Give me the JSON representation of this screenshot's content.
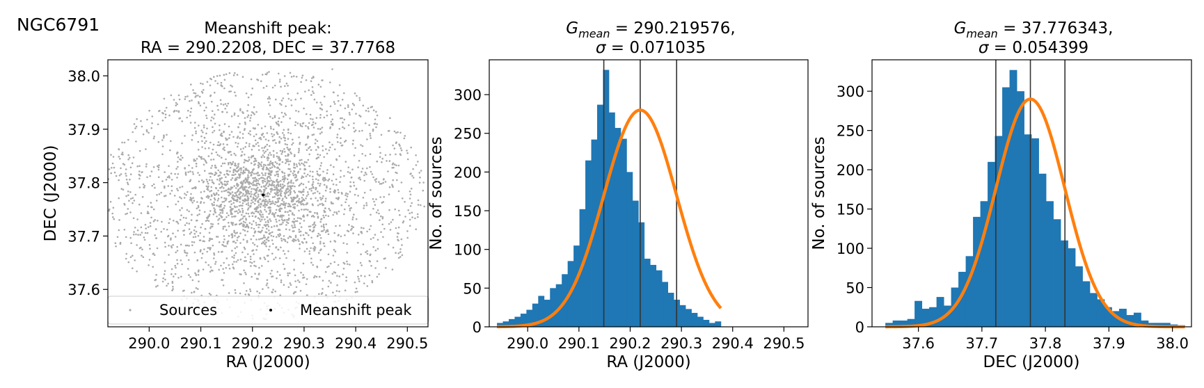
{
  "figure_label": "NGC6791",
  "chart_data": [
    {
      "type": "scatter",
      "title_line1": "Meanshift peak:",
      "title_line2": "RA = 290.2208, DEC = 37.7768",
      "xlabel": "RA (J2000)",
      "ylabel": "DEC (J2000)",
      "xlim": [
        289.92,
        290.54
      ],
      "ylim": [
        37.53,
        38.03
      ],
      "xticks": [
        290.0,
        290.1,
        290.2,
        290.3,
        290.4,
        290.5
      ],
      "xtick_labels": [
        "290.0",
        "290.1",
        "290.2",
        "290.3",
        "290.4",
        "290.5"
      ],
      "yticks": [
        37.6,
        37.7,
        37.8,
        37.9,
        38.0
      ],
      "ytick_labels": [
        "37.6",
        "37.7",
        "37.8",
        "37.9",
        "38.0"
      ],
      "sources": {
        "name": "Sources",
        "count": 3000,
        "center": [
          290.2208,
          37.7768
        ],
        "radius_deg": 0.32,
        "color": "#aaaaaa"
      },
      "peak": {
        "name": "Meanshift peak",
        "ra": 290.2208,
        "dec": 37.7768,
        "color": "#000000"
      },
      "legend": [
        "Sources",
        "Meanshift peak"
      ],
      "legend_position": "lower center"
    },
    {
      "type": "bar",
      "title_line1": "G_mean = 290.219576,",
      "title_line2": "σ = 0.071035",
      "title_g": "G",
      "title_sub": "mean",
      "title_val1": " = 290.219576,",
      "title_sigma": "σ",
      "title_val2": " = 0.071035",
      "xlabel": "RA (J2000)",
      "ylabel": "No. of sources",
      "xlim": [
        289.925,
        290.547
      ],
      "ylim": [
        0,
        345
      ],
      "xticks": [
        290.0,
        290.1,
        290.2,
        290.3,
        290.4,
        290.5
      ],
      "xtick_labels": [
        "290.0",
        "290.1",
        "290.2",
        "290.3",
        "290.4",
        "290.5"
      ],
      "yticks": [
        0,
        50,
        100,
        150,
        200,
        250,
        300
      ],
      "ytick_labels": [
        "0",
        "50",
        "100",
        "150",
        "200",
        "250",
        "300"
      ],
      "bin_start": 289.94,
      "bin_width": 0.0115,
      "values": [
        5,
        7,
        10,
        13,
        17,
        22,
        30,
        40,
        35,
        50,
        55,
        68,
        85,
        105,
        152,
        215,
        242,
        287,
        332,
        277,
        257,
        243,
        200,
        163,
        135,
        88,
        80,
        73,
        58,
        44,
        35,
        28,
        23,
        18,
        13,
        9,
        5,
        7
      ],
      "fit": {
        "mean": 290.219576,
        "sigma": 0.071035,
        "amplitude": 280
      },
      "vlines": [
        290.148541,
        290.219576,
        290.290611
      ],
      "bar_color": "#1f77b4",
      "fit_color": "#ff7f0e",
      "vline_color": "#333333"
    },
    {
      "type": "bar",
      "title_line1": "G_mean = 37.776343,",
      "title_line2": "σ = 0.054399",
      "title_g": "G",
      "title_sub": "mean",
      "title_val1": " = 37.776343,",
      "title_sigma": "σ",
      "title_val2": " = 0.054399",
      "xlabel": "DEC (J2000)",
      "ylabel": "No. of sources",
      "xlim": [
        37.527,
        38.03
      ],
      "ylim": [
        0,
        340
      ],
      "xticks": [
        37.6,
        37.7,
        37.8,
        37.9,
        38.0
      ],
      "xtick_labels": [
        "37.6",
        "37.7",
        "37.8",
        "37.9",
        "38.0"
      ],
      "yticks": [
        0,
        50,
        100,
        150,
        200,
        250,
        300
      ],
      "ytick_labels": [
        "0",
        "50",
        "100",
        "150",
        "200",
        "250",
        "300"
      ],
      "bin_start": 37.548,
      "bin_width": 0.0115,
      "values": [
        5,
        8,
        8,
        10,
        33,
        23,
        25,
        38,
        27,
        50,
        70,
        90,
        140,
        160,
        210,
        243,
        305,
        327,
        300,
        245,
        240,
        195,
        160,
        137,
        110,
        100,
        77,
        58,
        43,
        35,
        25,
        20,
        23,
        15,
        18,
        8,
        5,
        5,
        5,
        3,
        2
      ],
      "fit": {
        "mean": 37.776343,
        "sigma": 0.054399,
        "amplitude": 290
      },
      "vlines": [
        37.721944,
        37.776343,
        37.830742
      ],
      "bar_color": "#1f77b4",
      "fit_color": "#ff7f0e",
      "vline_color": "#333333"
    }
  ]
}
